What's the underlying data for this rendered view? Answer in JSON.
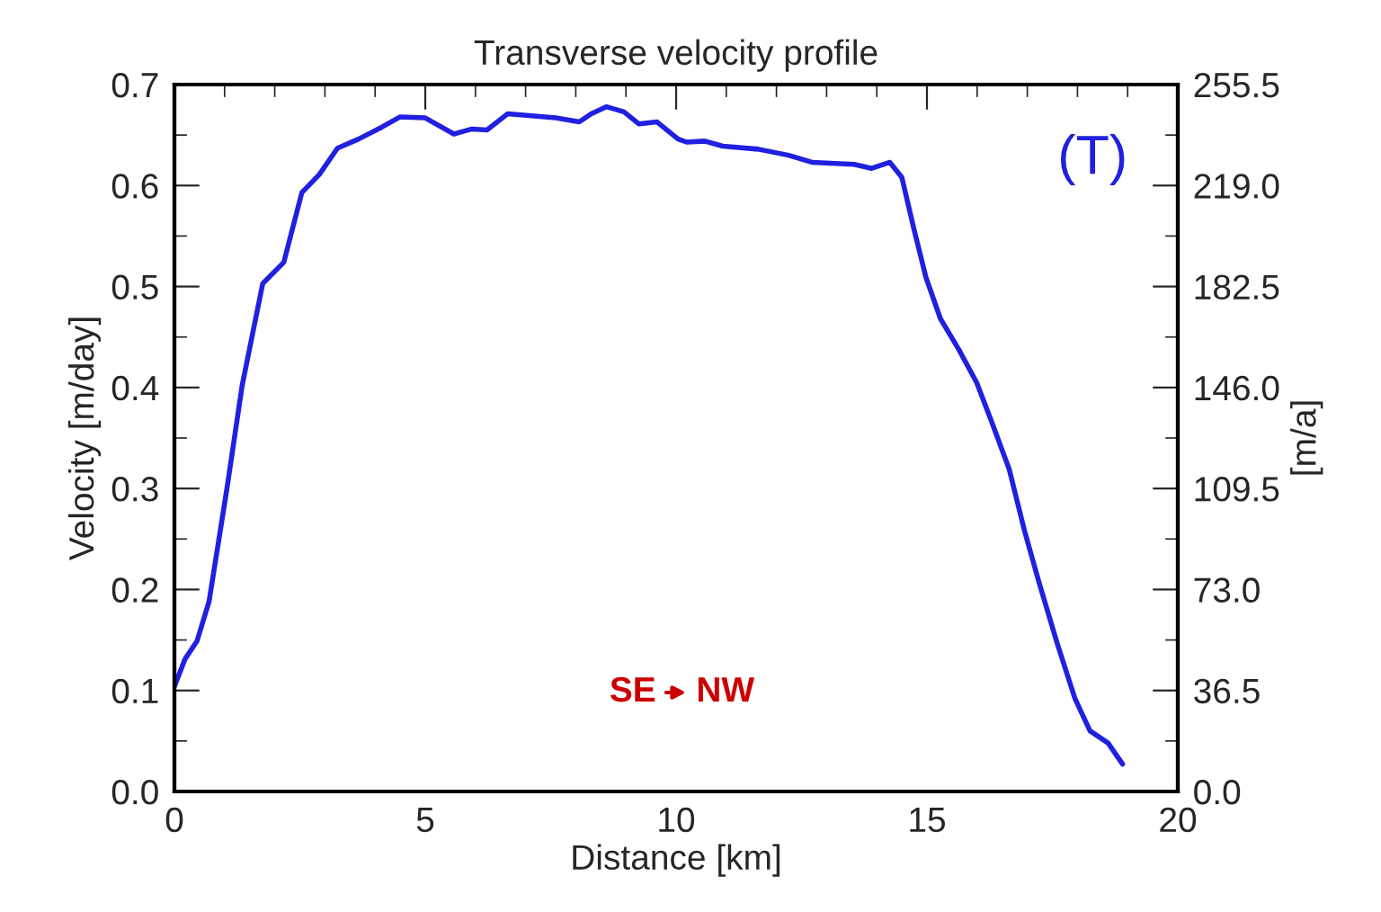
{
  "chart_data": {
    "type": "line",
    "title": "Transverse velocity profile",
    "xlabel": "Distance [km]",
    "ylabel": "Velocity [m/day]",
    "y2label": "[m/a]",
    "x": [
      0,
      0.21,
      0.45,
      0.69,
      1.05,
      1.35,
      1.76,
      2.18,
      2.54,
      2.89,
      3.25,
      3.67,
      4.14,
      4.5,
      5.0,
      5.57,
      5.93,
      6.23,
      6.64,
      7.12,
      7.6,
      8.07,
      8.31,
      8.61,
      8.96,
      9.26,
      9.62,
      10.04,
      10.21,
      10.57,
      10.93,
      11.64,
      12.24,
      12.71,
      13.55,
      13.9,
      14.26,
      14.5,
      14.74,
      14.98,
      15.27,
      15.63,
      15.99,
      16.29,
      16.64,
      16.94,
      17.24,
      17.6,
      17.95,
      18.25,
      18.61,
      18.9
    ],
    "series": [
      {
        "color": "#2020e0",
        "values": [
          0.104,
          0.131,
          0.149,
          0.188,
          0.301,
          0.402,
          0.503,
          0.524,
          0.593,
          0.611,
          0.637,
          0.646,
          0.658,
          0.668,
          0.667,
          0.651,
          0.656,
          0.655,
          0.671,
          0.669,
          0.667,
          0.663,
          0.671,
          0.678,
          0.673,
          0.661,
          0.663,
          0.646,
          0.643,
          0.644,
          0.639,
          0.636,
          0.63,
          0.623,
          0.621,
          0.617,
          0.623,
          0.608,
          0.557,
          0.509,
          0.468,
          0.438,
          0.405,
          0.366,
          0.319,
          0.259,
          0.206,
          0.146,
          0.092,
          0.06,
          0.048,
          0.027
        ]
      }
    ],
    "xlim": [
      0,
      20
    ],
    "xticks": [
      0,
      5,
      10,
      15,
      20
    ],
    "ylim": [
      0,
      0.7
    ],
    "yticks": [
      {
        "value": 0,
        "label": "0.0"
      },
      {
        "value": 0.1,
        "label": "0.1"
      },
      {
        "value": 0.2,
        "label": "0.2"
      },
      {
        "value": 0.3,
        "label": "0.3"
      },
      {
        "value": 0.4,
        "label": "0.4"
      },
      {
        "value": 0.5,
        "label": "0.5"
      },
      {
        "value": 0.6,
        "label": "0.6"
      },
      {
        "value": 0.7,
        "label": "0.7"
      }
    ],
    "y2lim": [
      0,
      255.5
    ],
    "y2ticks": [
      {
        "value": 0,
        "label": "0.0"
      },
      {
        "value": 36.5,
        "label": "36.5"
      },
      {
        "value": 73,
        "label": "73.0"
      },
      {
        "value": 109.5,
        "label": "109.5"
      },
      {
        "value": 146,
        "label": "146.0"
      },
      {
        "value": 182.5,
        "label": "182.5"
      },
      {
        "value": 219,
        "label": "219.0"
      },
      {
        "value": 255.5,
        "label": "255.5"
      }
    ],
    "annotations": [
      "(T)",
      "SE",
      "NW"
    ],
    "grid": false,
    "legend": false,
    "line_style": "solid",
    "marker": "none"
  }
}
